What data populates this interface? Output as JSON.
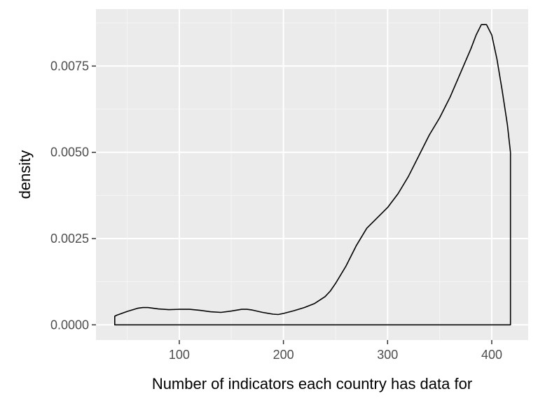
{
  "chart_data": {
    "type": "area",
    "title": "",
    "xlabel": "Number of indicators each country has data for",
    "ylabel": "density",
    "xlim": [
      20,
      435
    ],
    "ylim": [
      -0.00044,
      0.00915
    ],
    "x_ticks": [
      100,
      200,
      300,
      400
    ],
    "x_tick_labels": [
      "100",
      "200",
      "300",
      "400"
    ],
    "y_ticks": [
      0,
      0.0025,
      0.005,
      0.0075
    ],
    "y_tick_labels": [
      "0.0000",
      "0.0025",
      "0.0050",
      "0.0075"
    ],
    "x_minor": [
      50,
      150,
      250,
      350
    ],
    "y_minor": [
      0.00125,
      0.00375,
      0.00625,
      0.00875
    ],
    "grid": true,
    "legend": "none",
    "series": [
      {
        "x": [
          38,
          40,
          50,
          60,
          65,
          70,
          80,
          90,
          100,
          110,
          120,
          130,
          140,
          150,
          160,
          165,
          170,
          180,
          190,
          195,
          200,
          210,
          220,
          230,
          240,
          245,
          250,
          260,
          270,
          280,
          290,
          300,
          310,
          320,
          330,
          340,
          350,
          360,
          370,
          380,
          385,
          390,
          395,
          400,
          405,
          410,
          415,
          418
        ],
        "values": [
          0.00025,
          0.00028,
          0.00039,
          0.00048,
          0.0005,
          0.0005,
          0.00046,
          0.00044,
          0.00045,
          0.00045,
          0.00042,
          0.00038,
          0.00036,
          0.0004,
          0.00045,
          0.00045,
          0.00043,
          0.00036,
          0.00031,
          0.0003,
          0.00033,
          0.00041,
          0.0005,
          0.00062,
          0.00082,
          0.00098,
          0.0012,
          0.0017,
          0.0023,
          0.0028,
          0.0031,
          0.0034,
          0.0038,
          0.0043,
          0.0049,
          0.0055,
          0.006,
          0.0066,
          0.0073,
          0.008,
          0.0084,
          0.0087,
          0.0087,
          0.0084,
          0.0077,
          0.0068,
          0.0058,
          0.005
        ]
      }
    ]
  },
  "colors": {
    "panel": "#EBEBEB",
    "grid_major": "#FFFFFF",
    "grid_minor": "#F5F5F5",
    "line": "#000000",
    "tick_text": "#4D4D4D",
    "axis_title": "#000000"
  }
}
